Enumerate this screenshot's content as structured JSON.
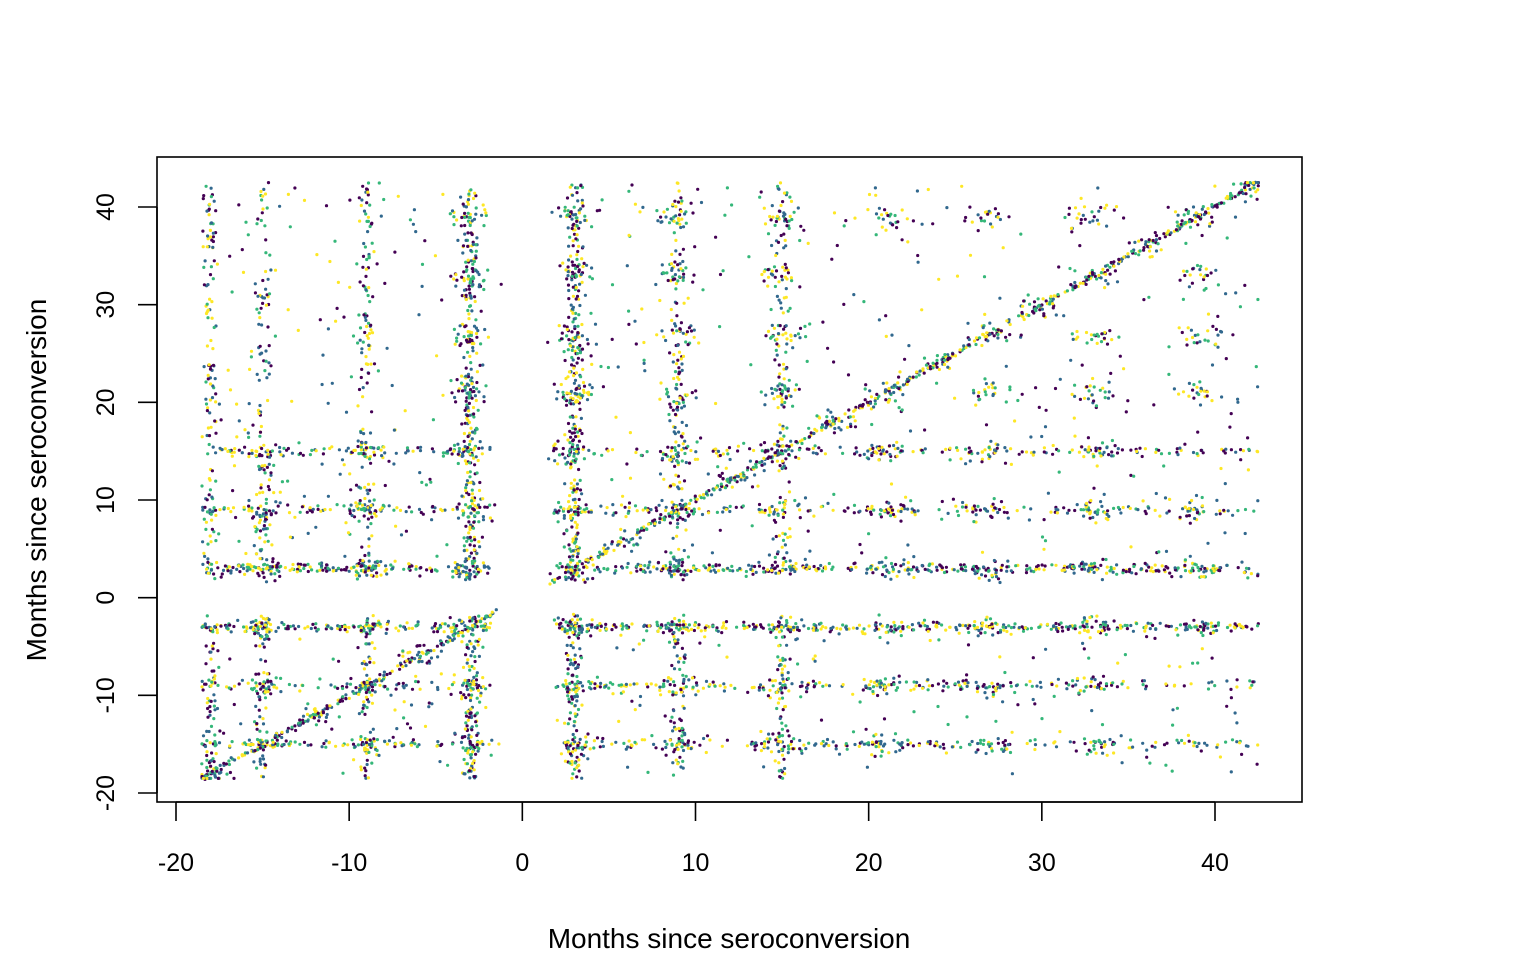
{
  "chart_data": {
    "type": "scatter",
    "title": "",
    "xlabel": "Months since seroconversion",
    "ylabel": "Months since seroconversion",
    "xlim": [
      -21,
      45
    ],
    "ylim": [
      -21,
      45
    ],
    "x_ticks": [
      -20,
      -10,
      0,
      10,
      20,
      30,
      40
    ],
    "y_ticks": [
      -20,
      -10,
      0,
      10,
      20,
      30,
      40
    ],
    "x_tick_labels": [
      "-20",
      "-10",
      "0",
      "10",
      "20",
      "30",
      "40"
    ],
    "y_tick_labels": [
      "-20",
      "-10",
      "0",
      "10",
      "20",
      "30",
      "40"
    ],
    "grid": false,
    "legend": "none",
    "point_colors": [
      "#440154",
      "#31688e",
      "#35b779",
      "#fde725"
    ],
    "visit_months": [
      -18,
      -15,
      -12,
      -9,
      -6,
      -3,
      3,
      6,
      9,
      12,
      15,
      18,
      21,
      24,
      27,
      30,
      33,
      36,
      39,
      42
    ],
    "series": [
      {
        "description": "pairs of visit times (x = months since seroconversion at one visit, y = at another visit); clustered on the diagonal y = x, on horizontal bands near y = ±3, ±9, ±15 and vertical bands near x = ±3, ±9, ±15",
        "structure": {
          "diagonal": {
            "slope": 1,
            "x_range": [
              -18.5,
              42.5
            ]
          },
          "horizontal_bands_y": [
            3,
            -3,
            9,
            -9,
            15,
            -15
          ],
          "vertical_bands_x": [
            -18,
            -15,
            -9,
            -3,
            3,
            9,
            15
          ]
        },
        "points": [
          [
            -18,
            -18
          ],
          [
            -15,
            -15
          ],
          [
            -12,
            -12
          ],
          [
            -9,
            -9
          ],
          [
            -6,
            -6
          ],
          [
            -3,
            -3
          ],
          [
            3,
            3
          ],
          [
            6,
            6
          ],
          [
            9,
            9
          ],
          [
            12,
            12
          ],
          [
            15,
            15
          ],
          [
            18,
            18
          ],
          [
            21,
            21
          ],
          [
            24,
            24
          ],
          [
            27,
            27
          ],
          [
            30,
            30
          ],
          [
            33,
            33
          ],
          [
            36,
            36
          ],
          [
            39,
            39
          ],
          [
            42,
            42
          ],
          [
            -15,
            3
          ],
          [
            -9,
            3
          ],
          [
            -3,
            3
          ],
          [
            9,
            3
          ],
          [
            15,
            3
          ],
          [
            21,
            3
          ],
          [
            27,
            3
          ],
          [
            33,
            3
          ],
          [
            39,
            3
          ],
          [
            -15,
            -3
          ],
          [
            -9,
            -3
          ],
          [
            3,
            -3
          ],
          [
            9,
            -3
          ],
          [
            15,
            -3
          ],
          [
            21,
            -3
          ],
          [
            27,
            -3
          ],
          [
            33,
            -3
          ],
          [
            39,
            -3
          ],
          [
            -15,
            9
          ],
          [
            -9,
            9
          ],
          [
            -3,
            9
          ],
          [
            3,
            9
          ],
          [
            15,
            9
          ],
          [
            21,
            9
          ],
          [
            27,
            9
          ],
          [
            33,
            9
          ],
          [
            39,
            9
          ],
          [
            -15,
            -9
          ],
          [
            -3,
            -9
          ],
          [
            3,
            -9
          ],
          [
            9,
            -9
          ],
          [
            15,
            -9
          ],
          [
            21,
            -9
          ],
          [
            27,
            -9
          ],
          [
            33,
            -9
          ],
          [
            -15,
            15
          ],
          [
            -9,
            15
          ],
          [
            -3,
            15
          ],
          [
            3,
            15
          ],
          [
            9,
            15
          ],
          [
            21,
            15
          ],
          [
            27,
            15
          ],
          [
            33,
            15
          ],
          [
            -9,
            -15
          ],
          [
            -3,
            -15
          ],
          [
            3,
            -15
          ],
          [
            9,
            -15
          ],
          [
            15,
            -15
          ],
          [
            21,
            -15
          ],
          [
            27,
            -15
          ],
          [
            33,
            -15
          ],
          [
            -3,
            21
          ],
          [
            3,
            21
          ],
          [
            9,
            21
          ],
          [
            15,
            21
          ],
          [
            -3,
            27
          ],
          [
            3,
            27
          ],
          [
            9,
            27
          ],
          [
            15,
            27
          ],
          [
            -3,
            33
          ],
          [
            3,
            33
          ],
          [
            9,
            33
          ],
          [
            15,
            33
          ],
          [
            -3,
            39
          ],
          [
            3,
            39
          ],
          [
            9,
            39
          ],
          [
            15,
            39
          ],
          [
            27,
            21
          ],
          [
            33,
            21
          ],
          [
            39,
            21
          ],
          [
            33,
            27
          ],
          [
            39,
            27
          ],
          [
            39,
            33
          ],
          [
            21,
            39
          ],
          [
            27,
            39
          ],
          [
            33,
            39
          ]
        ]
      }
    ]
  }
}
